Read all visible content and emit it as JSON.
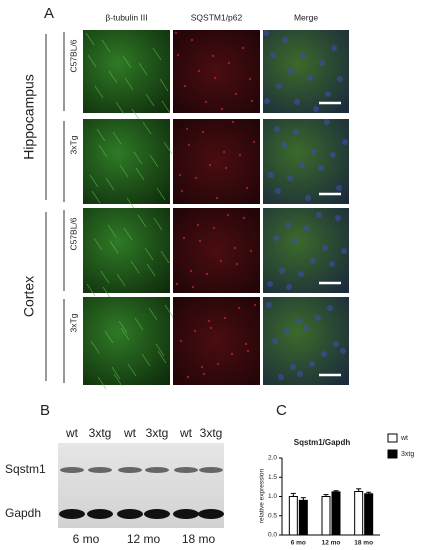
{
  "panel_a": {
    "label": "A",
    "columns": [
      "β-tubulin III",
      "SQSTM1/p62",
      "Merge"
    ],
    "groups": [
      {
        "name": "Hippocampus",
        "rows": [
          "C57BL/6",
          "3xTg"
        ]
      },
      {
        "name": "Cortex",
        "rows": [
          "C57BL/6",
          "3xTg"
        ]
      }
    ]
  },
  "panel_b": {
    "label": "B",
    "lanes": [
      "wt",
      "3xtg",
      "wt",
      "3xtg",
      "wt",
      "3xtg"
    ],
    "bands": [
      "Sqstm1",
      "Gapdh"
    ],
    "timepoints": [
      "6 mo",
      "12 mo",
      "18 mo"
    ]
  },
  "chart_data": {
    "type": "bar",
    "panel_label": "C",
    "title": "Sqstm1/Gapdh",
    "y_label": "relative expression",
    "categories": [
      "6 mo",
      "12 mo",
      "18 mo"
    ],
    "series": [
      {
        "name": "wt",
        "color": "#ffffff",
        "values": [
          1.0,
          1.0,
          1.13
        ],
        "errors": [
          0.08,
          0.05,
          0.07
        ]
      },
      {
        "name": "3xtg",
        "color": "#000000",
        "values": [
          0.9,
          1.12,
          1.07
        ],
        "errors": [
          0.07,
          0.03,
          0.04
        ]
      }
    ],
    "ylim": [
      0,
      2
    ],
    "yticks": [
      {
        "value": 0,
        "label": "0.0"
      },
      {
        "value": 0.5,
        "label": "0.5"
      },
      {
        "value": 1,
        "label": "1.0"
      },
      {
        "value": 1.5,
        "label": "1.5"
      },
      {
        "value": 2,
        "label": "2.0"
      }
    ]
  }
}
